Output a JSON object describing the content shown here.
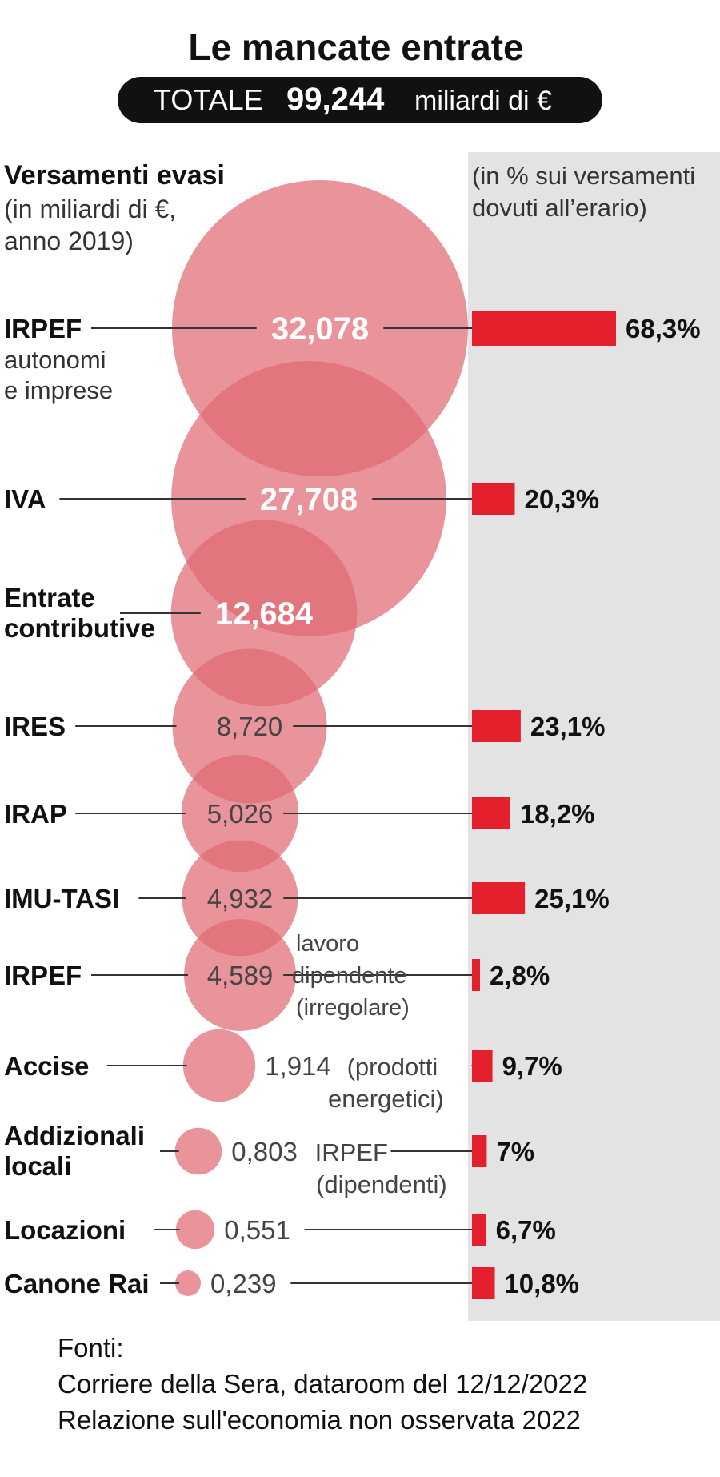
{
  "title": "Le mancate entrate",
  "total": {
    "label": "TOTALE",
    "value": "99,244",
    "unit": "miliardi di €"
  },
  "left_header": {
    "title": "Versamenti evasi",
    "sub1": "(in miliardi di €,",
    "sub2": "anno 2019)"
  },
  "right_header": {
    "line1": "(in % sui versamenti",
    "line2": "dovuti all’erario)"
  },
  "chart_data": {
    "type": "bubble",
    "categories": [
      "IRPEF",
      "IVA",
      "Entrate contributive",
      "IRES",
      "IRAP",
      "IMU-TASI",
      "IRPEF",
      "Accise",
      "Addizionali locali",
      "Locazioni",
      "Canone Rai"
    ],
    "series": [
      {
        "name": "Versamenti evasi",
        "values": [
          32.078,
          27.708,
          12.684,
          8.72,
          5.026,
          4.932,
          4.589,
          1.914,
          0.803,
          0.551,
          0.239
        ]
      },
      {
        "name": "in % sui versamenti dovuti all’erario",
        "values": [
          68.3,
          20.3,
          null,
          23.1,
          18.2,
          25.1,
          2.8,
          9.7,
          7,
          6.7,
          10.8
        ]
      }
    ],
    "rows": [
      {
        "label": "IRPEF",
        "sublabel": [
          "autonomi",
          "e imprese"
        ],
        "value": "32,078",
        "pct": "68,3%"
      },
      {
        "label": "IVA",
        "value": "27,708",
        "pct": "20,3%"
      },
      {
        "label": "Entrate",
        "label2": "contributive",
        "value": "12,684",
        "pct": ""
      },
      {
        "label": "IRES",
        "value": "8,720",
        "pct": "23,1%"
      },
      {
        "label": "IRAP",
        "value": "5,026",
        "pct": "18,2%"
      },
      {
        "label": "IMU-TASI",
        "value": "4,932",
        "pct": "25,1%"
      },
      {
        "label": "IRPEF",
        "value": "4,589",
        "note": [
          "lavoro",
          "dipendente",
          "(irregolare)"
        ],
        "pct": "2,8%"
      },
      {
        "label": "Accise",
        "value": "1,914",
        "note": [
          "(prodotti",
          "energetici)"
        ],
        "pct": "9,7%"
      },
      {
        "label": "Addizionali",
        "label2": "locali",
        "value": "0,803",
        "note": [
          "IRPEF",
          "(dipendenti)"
        ],
        "pct": "7%"
      },
      {
        "label": "Locazioni",
        "value": "0,551",
        "pct": "6,7%"
      },
      {
        "label": "Canone Rai",
        "value": "0,239",
        "pct": "10,8%"
      }
    ]
  },
  "sources": {
    "line1": "Fonti:",
    "line2": "Corriere della Sera, dataroom del 12/12/2022",
    "line3": "Relazione sull'economia non osservata 2022"
  },
  "colors": {
    "bubble": "#e06a74",
    "bar": "#e3202b",
    "panel": "#e3e3e3",
    "dark": "#111111"
  }
}
